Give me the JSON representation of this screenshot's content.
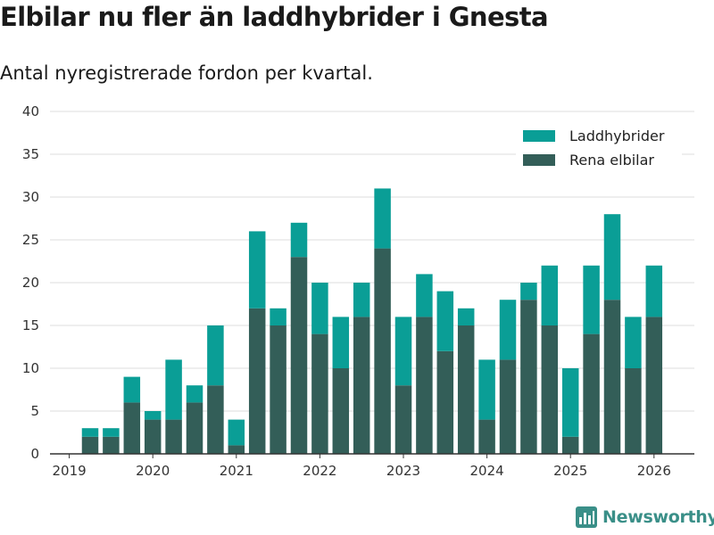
{
  "title": "Elbilar nu fler än laddhybrider i Gnesta",
  "subtitle": "Antal nyregistrerade fordon per kvartal.",
  "brand": {
    "name": "Newsworthy",
    "icon": "bar-chart-logo-icon"
  },
  "colors": {
    "laddhybrider": "#0a9e96",
    "rena_elbilar": "#335e58",
    "grid": "#dddddd",
    "axis": "#333333"
  },
  "chart_data": {
    "type": "bar",
    "stacked": true,
    "categories": [
      "2019Q2",
      "2019Q3",
      "2019Q4",
      "2020Q1",
      "2020Q2",
      "2020Q3",
      "2020Q4",
      "2021Q1",
      "2021Q2",
      "2021Q3",
      "2021Q4",
      "2022Q1",
      "2022Q2",
      "2022Q3",
      "2022Q4",
      "2023Q1",
      "2023Q2",
      "2023Q3",
      "2023Q4",
      "2024Q1",
      "2024Q2",
      "2024Q3",
      "2024Q4",
      "2025Q1",
      "2025Q2",
      "2025Q3",
      "2025Q4",
      "2026Q1"
    ],
    "series": [
      {
        "name": "Rena elbilar",
        "values": [
          2,
          2,
          6,
          4,
          4,
          6,
          8,
          1,
          17,
          15,
          23,
          14,
          10,
          16,
          24,
          8,
          16,
          12,
          15,
          4,
          11,
          18,
          15,
          2,
          14,
          18,
          10,
          16
        ]
      },
      {
        "name": "Laddhybrider",
        "values": [
          1,
          1,
          3,
          1,
          7,
          2,
          7,
          3,
          9,
          2,
          4,
          6,
          6,
          4,
          7,
          8,
          5,
          7,
          2,
          7,
          7,
          2,
          7,
          8,
          8,
          10,
          6,
          6
        ]
      }
    ],
    "legend": [
      "Laddhybrider",
      "Rena elbilar"
    ],
    "legend_position": "top-right",
    "yticks": [
      0,
      5,
      10,
      15,
      20,
      25,
      30,
      35,
      40
    ],
    "xtick_labels": [
      "2019",
      "2020",
      "2021",
      "2022",
      "2023",
      "2024",
      "2025",
      "2026"
    ],
    "ylim": [
      0,
      40
    ],
    "grid": true,
    "xlabel": "",
    "ylabel": ""
  }
}
